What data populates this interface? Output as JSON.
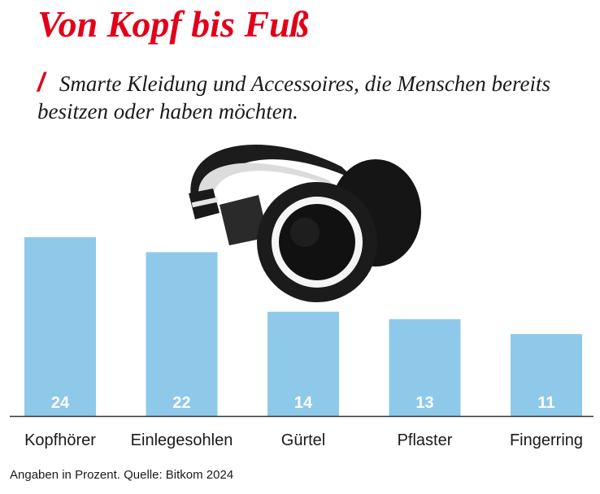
{
  "title": "Von Kopf bis Fuß",
  "subtitle": "Smarte Kleidung und Accessoires, die Menschen bereits besitzen oder haben möchten.",
  "subtitle_marker": "/",
  "footer": "Angaben in Prozent. Quelle: Bitkom 2024",
  "colors": {
    "title": "#e2001a",
    "bar": "#8fc9ea",
    "axis": "#333333"
  },
  "illustration": "headphones-image",
  "chart_data": {
    "type": "bar",
    "categories": [
      "Kopfhörer",
      "Einlegesohlen",
      "Gürtel",
      "Pflaster",
      "Fingerring"
    ],
    "values": [
      24,
      22,
      14,
      13,
      11
    ],
    "ylim": [
      0,
      24
    ],
    "grid": false,
    "data_labels": "inside-bottom"
  }
}
